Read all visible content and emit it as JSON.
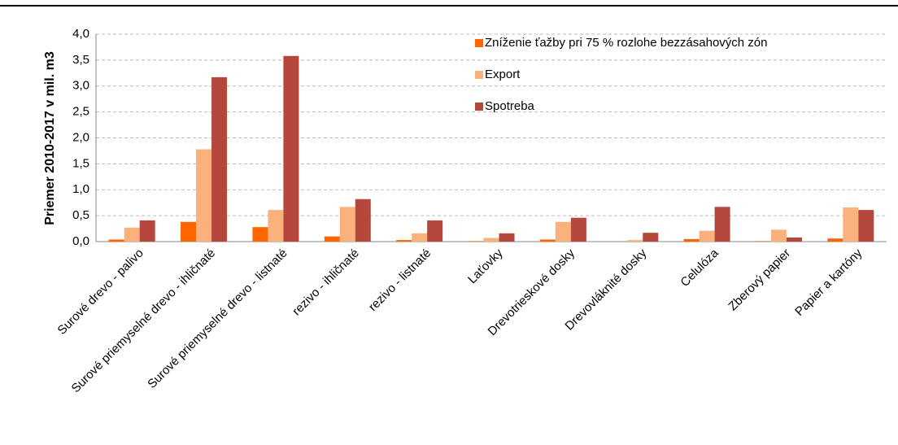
{
  "chart_data": {
    "type": "bar",
    "y_label": "Priemer 2010-2017 v mil. m3",
    "categories": [
      "Surové drevo - palivo",
      "Surové priemyselné drevo - ihličnaté",
      "Surové priemyselné drevo - listnaté",
      "rezivo - ihličnaté",
      "rezivo - listnaté",
      "Laťovky",
      "Drevotrieskové dosky",
      "Drevovláknité dosky",
      "Celulóza",
      "Zberový papier",
      "Papier a kartóny"
    ],
    "series": [
      {
        "name": "Zníženie ťažby pri 75 % rozlohe bezzásahových zón",
        "color": "#ff6600",
        "values": [
          0.04,
          0.38,
          0.28,
          0.1,
          0.03,
          0.01,
          0.04,
          0.0,
          0.05,
          0.01,
          0.06
        ]
      },
      {
        "name": "Export",
        "color": "#fab17c",
        "values": [
          0.27,
          1.78,
          0.61,
          0.67,
          0.16,
          0.07,
          0.38,
          0.03,
          0.21,
          0.23,
          0.66
        ]
      },
      {
        "name": "Spotreba",
        "color": "#b5473c",
        "values": [
          0.41,
          3.17,
          3.58,
          0.82,
          0.41,
          0.16,
          0.46,
          0.17,
          0.67,
          0.08,
          0.61
        ]
      }
    ],
    "ylim": [
      0,
      4
    ],
    "yticks": [
      {
        "value": 0,
        "label": "0,0"
      },
      {
        "value": 0.5,
        "label": "0,5"
      },
      {
        "value": 1,
        "label": "1,0"
      },
      {
        "value": 1.5,
        "label": "1,5"
      },
      {
        "value": 2,
        "label": "2,0"
      },
      {
        "value": 2.5,
        "label": "2,5"
      },
      {
        "value": 3,
        "label": "3,0"
      },
      {
        "value": 3.5,
        "label": "3,5"
      },
      {
        "value": 4,
        "label": "4,0"
      }
    ],
    "grid": true,
    "legend": "top"
  }
}
